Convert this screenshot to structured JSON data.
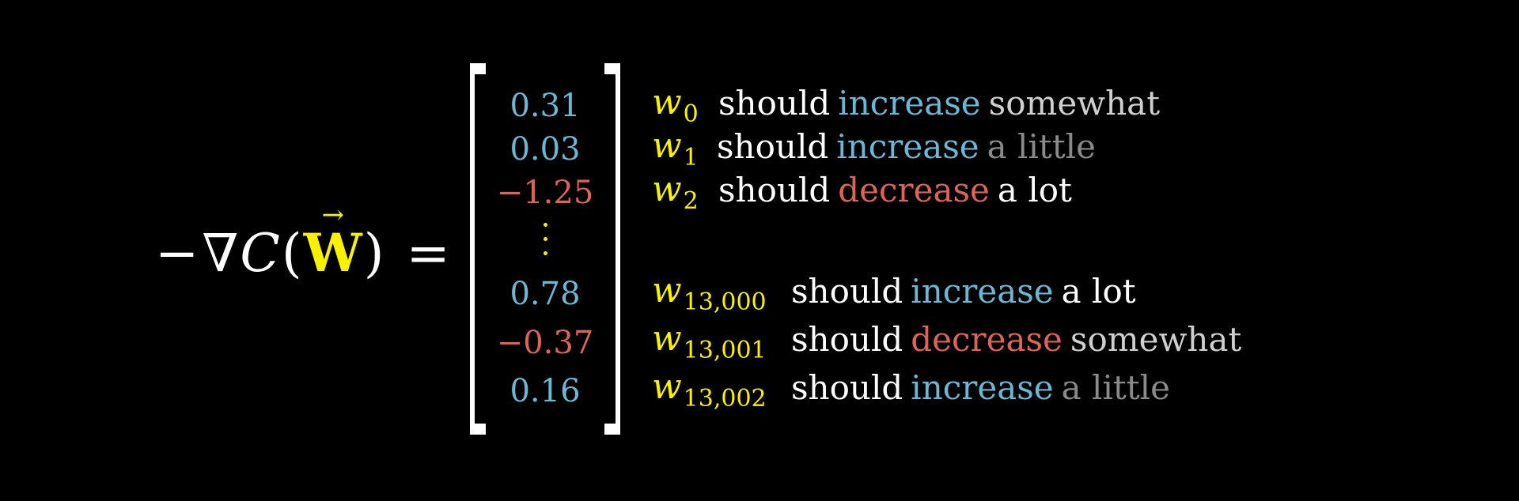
{
  "equation": {
    "minus": "−",
    "nabla": "∇",
    "cost": "C",
    "open_paren": "(",
    "vector_arrow": "→",
    "vector_symbol": "W",
    "close_paren": ")",
    "equals": "="
  },
  "colors": {
    "background": "#000000",
    "text": "#ffffff",
    "weight_symbol": "#f8f200",
    "increase": "#6bb7d6",
    "decrease": "#e06358",
    "somewhat": "#cfcfcf",
    "a_little": "#8a8a8a",
    "a_lot": "#ffffff"
  },
  "rows": [
    {
      "value": "0.31",
      "direction": "increase",
      "w_base": "w",
      "w_sub": "0",
      "should": "should",
      "verb": "increase",
      "amount": "somewhat",
      "amount_key": "somewhat"
    },
    {
      "value": "0.03",
      "direction": "increase",
      "w_base": "w",
      "w_sub": "1",
      "should": "should",
      "verb": "increase",
      "amount": "a little",
      "amount_key": "a_little"
    },
    {
      "value": "−1.25",
      "direction": "decrease",
      "w_base": "w",
      "w_sub": "2",
      "should": "should",
      "verb": "decrease",
      "amount": "a lot",
      "amount_key": "a_lot"
    },
    {
      "value": "0.78",
      "direction": "increase",
      "w_base": "w",
      "w_sub": "13,000",
      "should": "should",
      "verb": "increase",
      "amount": "a lot",
      "amount_key": "a_lot"
    },
    {
      "value": "−0.37",
      "direction": "decrease",
      "w_base": "w",
      "w_sub": "13,001",
      "should": "should",
      "verb": "decrease",
      "amount": "somewhat",
      "amount_key": "somewhat"
    },
    {
      "value": "0.16",
      "direction": "increase",
      "w_base": "w",
      "w_sub": "13,002",
      "should": "should",
      "verb": "increase",
      "amount": "a little",
      "amount_key": "a_little"
    }
  ]
}
